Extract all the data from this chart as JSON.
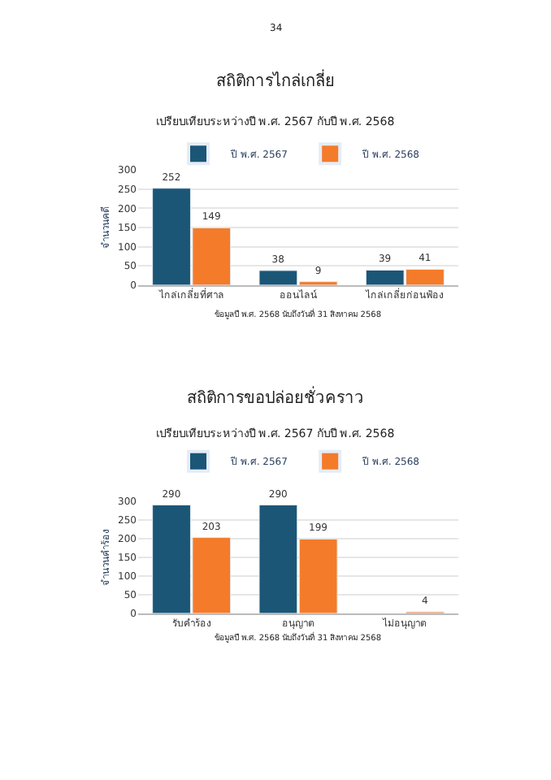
{
  "chart_data": [
    {
      "type": "bar",
      "title": "สถิติการไกล่เกลี่ย",
      "subtitle": "เปรียบเทียบระหว่างปี พ.ศ. 2567 กับปี พ.ศ. 2568",
      "ylabel": "จำนวนคดี",
      "categories": [
        "ไกล่เกลี่ยที่ศาล",
        "ออนไลน์",
        "ไกล่เกลี่ยก่อนฟ้อง"
      ],
      "series": [
        {
          "name": "ปี พ.ศ. 2567",
          "color": "#1b5677",
          "values": [
            252,
            38,
            39
          ]
        },
        {
          "name": "ปี พ.ศ. 2568",
          "color": "#f47b2a",
          "values": [
            149,
            9,
            41
          ]
        }
      ],
      "ylim": [
        0,
        300
      ],
      "yticks": [
        0,
        50,
        100,
        150,
        200,
        250,
        300
      ],
      "grid": "y",
      "legend": "top",
      "data_labels": true,
      "annotations": [
        "34",
        "ข้อมูลปี พ.ศ. 2568 นับถึงวันที่ 31 สิงหาคม 2568"
      ]
    },
    {
      "type": "bar",
      "title": "สถิติการขอปล่อยชั่วคราว",
      "subtitle": "เปรียบเทียบระหว่างปี พ.ศ. 2567 กับปี พ.ศ. 2568",
      "ylabel": "จำนวนคำร้อง",
      "categories": [
        "รับคำร้อง",
        "อนุญาต",
        "ไม่อนุญาต"
      ],
      "series": [
        {
          "name": "ปี พ.ศ. 2567",
          "color": "#1b5677",
          "values": [
            290,
            290,
            null
          ]
        },
        {
          "name": "ปี พ.ศ. 2568",
          "color": "#f47b2a",
          "values": [
            203,
            199,
            4
          ]
        }
      ],
      "ylim": [
        0,
        300
      ],
      "yticks": [
        0,
        50,
        100,
        150,
        200,
        250,
        300
      ],
      "grid": "y",
      "legend": "top",
      "data_labels": true,
      "annotations": [
        "ข้อมูลปี พ.ศ. 2568 นับถึงวันที่ 31 สิงหาคม 2568"
      ]
    }
  ]
}
